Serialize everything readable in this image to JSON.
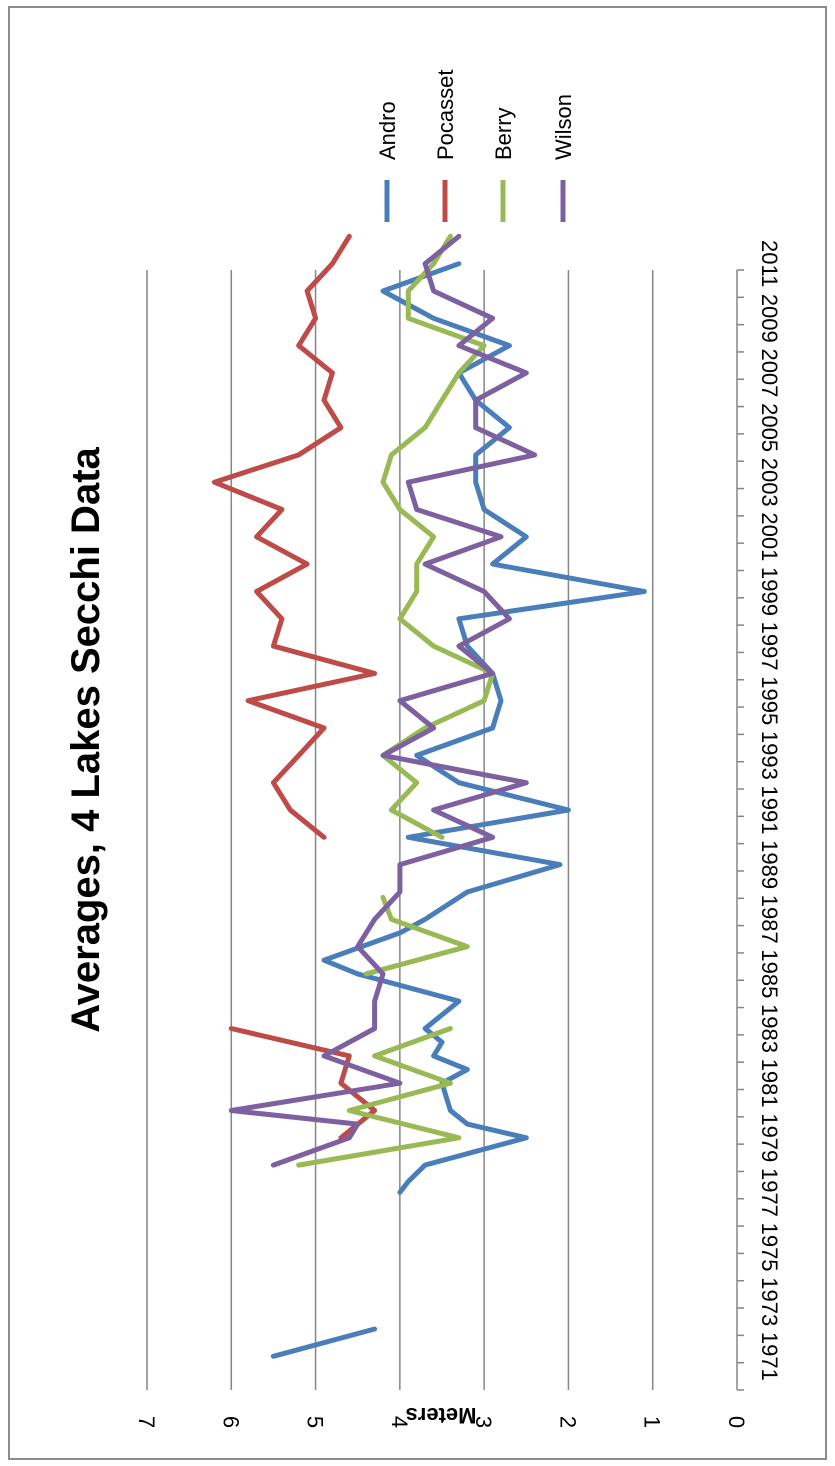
{
  "chart_data": {
    "type": "line",
    "title": "Averages, 4 Lakes Secchi Data",
    "xlabel": "",
    "ylabel": "Meters",
    "ylim": [
      0,
      7
    ],
    "yticks": [
      0,
      1,
      2,
      3,
      4,
      5,
      6,
      7
    ],
    "xlim": [
      1971,
      2012
    ],
    "xticks": [
      1971,
      1973,
      1975,
      1977,
      1979,
      1981,
      1983,
      1985,
      1987,
      1989,
      1991,
      1993,
      1995,
      1997,
      1999,
      2001,
      2003,
      2005,
      2007,
      2009,
      2011
    ],
    "grid": true,
    "legend_position": "right",
    "orientation": "rotated-90-clockwise",
    "series": [
      {
        "name": "Andro",
        "color": "#4a7ebb",
        "points": [
          [
            1971,
            5.5
          ],
          [
            1972,
            4.3
          ],
          [
            null,
            null
          ],
          [
            1977,
            4.0
          ],
          [
            1977.4,
            3.9
          ],
          [
            1978,
            3.7
          ],
          [
            1979,
            2.5
          ],
          [
            1979.5,
            3.2
          ],
          [
            1980,
            3.4
          ],
          [
            1981,
            3.5
          ],
          [
            1981.5,
            3.2
          ],
          [
            1982,
            3.6
          ],
          [
            1982.5,
            3.5
          ],
          [
            1983,
            3.7
          ],
          [
            1984,
            3.3
          ],
          [
            1985,
            4.5
          ],
          [
            1985.5,
            4.9
          ],
          [
            1986.5,
            4.0
          ],
          [
            1987,
            3.7
          ],
          [
            1988,
            3.2
          ],
          [
            1989,
            2.1
          ],
          [
            1990,
            3.9
          ],
          [
            1991,
            2.0
          ],
          [
            1992,
            3.3
          ],
          [
            1993,
            3.8
          ],
          [
            1994,
            2.9
          ],
          [
            1995,
            2.8
          ],
          [
            1996,
            2.9
          ],
          [
            1997,
            3.2
          ],
          [
            1998,
            3.3
          ],
          [
            1999,
            1.1
          ],
          [
            2000,
            2.9
          ],
          [
            2001,
            2.5
          ],
          [
            2002,
            3.0
          ],
          [
            2003,
            3.1
          ],
          [
            2004,
            3.1
          ],
          [
            2005,
            2.7
          ],
          [
            2006,
            3.1
          ],
          [
            2007,
            3.3
          ],
          [
            2008,
            2.7
          ],
          [
            2009,
            3.6
          ],
          [
            2010,
            4.2
          ],
          [
            2011,
            3.3
          ]
        ]
      },
      {
        "name": "Pocasset",
        "color": "#be4b48",
        "points": [
          [
            1979,
            4.7
          ],
          [
            1980,
            4.3
          ],
          [
            1981,
            4.7
          ],
          [
            1982,
            4.6
          ],
          [
            1983,
            6.0
          ],
          [
            null,
            null
          ],
          [
            1990,
            4.9
          ],
          [
            1991,
            5.3
          ],
          [
            1992,
            5.5
          ],
          [
            1993,
            5.2
          ],
          [
            1994,
            4.9
          ],
          [
            1995,
            5.8
          ],
          [
            1996,
            4.3
          ],
          [
            1997,
            5.5
          ],
          [
            1998,
            5.4
          ],
          [
            1999,
            5.7
          ],
          [
            2000,
            5.1
          ],
          [
            2001,
            5.7
          ],
          [
            2002,
            5.4
          ],
          [
            2003,
            6.2
          ],
          [
            2004,
            5.2
          ],
          [
            2005,
            4.7
          ],
          [
            2006,
            4.9
          ],
          [
            2007,
            4.8
          ],
          [
            2008,
            5.2
          ],
          [
            2009,
            5.0
          ],
          [
            2010,
            5.1
          ],
          [
            2011,
            4.8
          ],
          [
            2012,
            4.6
          ]
        ]
      },
      {
        "name": "Berry",
        "color": "#98b954",
        "points": [
          [
            1978,
            5.2
          ],
          [
            1979,
            3.3
          ],
          [
            1980,
            4.6
          ],
          [
            1981,
            3.4
          ],
          [
            1982,
            4.3
          ],
          [
            1983,
            3.4
          ],
          [
            null,
            null
          ],
          [
            1985,
            4.4
          ],
          [
            1986,
            3.2
          ],
          [
            1987,
            4.1
          ],
          [
            1987.8,
            4.2
          ],
          [
            null,
            null
          ],
          [
            1990,
            3.5
          ],
          [
            1991,
            4.1
          ],
          [
            1992,
            3.8
          ],
          [
            1993,
            4.2
          ],
          [
            1994,
            3.7
          ],
          [
            1995,
            3.0
          ],
          [
            1996,
            2.9
          ],
          [
            1997,
            3.6
          ],
          [
            1998,
            4.0
          ],
          [
            1999,
            3.8
          ],
          [
            2000,
            3.8
          ],
          [
            2001,
            3.6
          ],
          [
            2002,
            4.0
          ],
          [
            2003,
            4.2
          ],
          [
            2004,
            4.1
          ],
          [
            2005,
            3.7
          ],
          [
            2006,
            3.5
          ],
          [
            2007,
            3.3
          ],
          [
            2008,
            3.0
          ],
          [
            2009,
            3.9
          ],
          [
            2010,
            3.9
          ],
          [
            2011,
            3.6
          ],
          [
            2012,
            3.4
          ]
        ]
      },
      {
        "name": "Wilson",
        "color": "#7d60a0",
        "points": [
          [
            1978,
            5.5
          ],
          [
            1979,
            4.6
          ],
          [
            1979.5,
            4.5
          ],
          [
            1980,
            6.0
          ],
          [
            1981,
            4.0
          ],
          [
            1982,
            4.9
          ],
          [
            1983,
            4.3
          ],
          [
            1984,
            4.3
          ],
          [
            1985,
            4.2
          ],
          [
            1986,
            4.5
          ],
          [
            1987,
            4.3
          ],
          [
            1988,
            4.0
          ],
          [
            1989,
            4.0
          ],
          [
            1990,
            2.9
          ],
          [
            1991,
            3.6
          ],
          [
            1992,
            2.5
          ],
          [
            1993,
            4.2
          ],
          [
            1994,
            3.6
          ],
          [
            1995,
            4.0
          ],
          [
            1996,
            2.9
          ],
          [
            1997,
            3.3
          ],
          [
            1998,
            2.7
          ],
          [
            1999,
            3.0
          ],
          [
            2000,
            3.7
          ],
          [
            2001,
            2.8
          ],
          [
            2002,
            3.8
          ],
          [
            2003,
            3.9
          ],
          [
            2004,
            2.4
          ],
          [
            2005,
            3.1
          ],
          [
            2006,
            3.1
          ],
          [
            2007,
            2.5
          ],
          [
            2008,
            3.3
          ],
          [
            2009,
            2.9
          ],
          [
            2010,
            3.6
          ],
          [
            2011,
            3.7
          ],
          [
            2012,
            3.3
          ]
        ]
      }
    ]
  }
}
